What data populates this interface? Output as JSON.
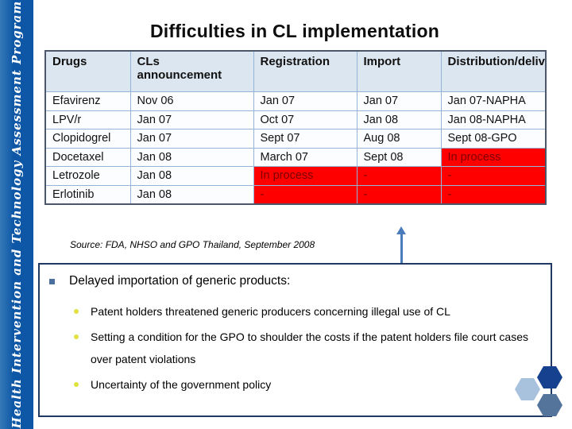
{
  "sidebar": {
    "text": "Health Intervention and Technology Assessment Program"
  },
  "title": "Difficulties in CL implementation",
  "table": {
    "headers": [
      "Drugs",
      "CLs announcement",
      "Registration",
      "Import",
      "Distribution/delivery"
    ],
    "rows": [
      [
        "Efavirenz",
        "Nov 06",
        "Jan 07",
        "Jan 07",
        "Jan 07-NAPHA"
      ],
      [
        "LPV/r",
        "Jan 07",
        "Oct 07",
        "Jan 08",
        "Jan 08-NAPHA"
      ],
      [
        "Clopidogrel",
        "Jan 07",
        "Sept 07",
        "Aug 08",
        "Sept 08-GPO"
      ],
      [
        "Docetaxel",
        "Jan 08",
        "March 07",
        "Sept 08",
        "In process"
      ],
      [
        "Letrozole",
        "Jan 08",
        "In process",
        "-",
        "-"
      ],
      [
        "Erlotinib",
        "Jan 08",
        "-",
        "-",
        "-"
      ]
    ],
    "highlight_cells": [
      [
        3,
        4
      ],
      [
        4,
        2
      ],
      [
        4,
        3
      ],
      [
        4,
        4
      ],
      [
        5,
        2
      ],
      [
        5,
        3
      ],
      [
        5,
        4
      ]
    ]
  },
  "source_note": "Source: FDA, NHSO and GPO Thailand, September 2008",
  "bullets": {
    "main": "Delayed importation of generic products:",
    "sub": [
      "Patent holders threatened generic producers concerning illegal use of CL",
      "Setting a condition for the GPO to shoulder the costs if the patent holders file court cases over patent violations",
      "Uncertainty of the government policy"
    ]
  },
  "colors": {
    "highlight_bg": "#FF0000",
    "highlight_text": "#7F0000",
    "header_bg": "#DCE6F1",
    "table_inner_border": "#95B3D7",
    "table_outer_border": "#4C5869",
    "sidebar_bg": "#0E57A6",
    "arrow": "#4A7CBB",
    "box_border": "#1F3864",
    "main_bullet": "#4A6E9E",
    "sub_bullet": "#E0E33F",
    "hex_dark": "#16418F",
    "hex_light": "#A8C2DE",
    "hex_slate": "#54749C"
  }
}
